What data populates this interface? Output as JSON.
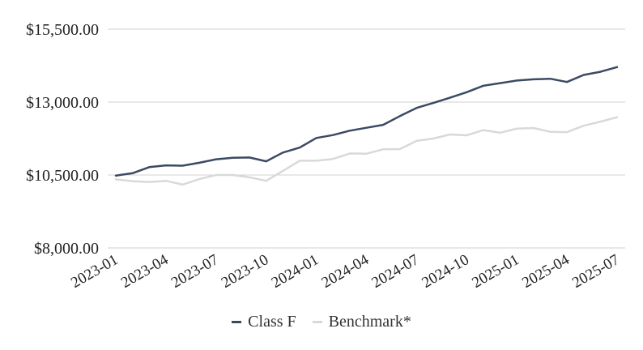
{
  "chart_data": {
    "type": "line",
    "title": "",
    "xlabel": "",
    "ylabel": "",
    "ylim": [
      8000,
      15500
    ],
    "yticks": [
      8000,
      10500,
      13000,
      15500
    ],
    "ytick_labels": [
      "$8,000.00",
      "$10,500.00",
      "$13,000.00",
      "$15,500.00"
    ],
    "x": [
      "2023-01",
      "2023-02",
      "2023-03",
      "2023-04",
      "2023-05",
      "2023-06",
      "2023-07",
      "2023-08",
      "2023-09",
      "2023-10",
      "2023-11",
      "2023-12",
      "2024-01",
      "2024-02",
      "2024-03",
      "2024-04",
      "2024-05",
      "2024-06",
      "2024-07",
      "2024-08",
      "2024-09",
      "2024-10",
      "2024-11",
      "2024-12",
      "2025-01",
      "2025-02",
      "2025-03",
      "2025-04",
      "2025-05",
      "2025-06",
      "2025-07"
    ],
    "xtick_labels": [
      "2023-01",
      "2023-04",
      "2023-07",
      "2023-10",
      "2024-01",
      "2024-04",
      "2024-07",
      "2024-10",
      "2025-01",
      "2025-04",
      "2025-07"
    ],
    "grid": true,
    "legend_position": "bottom",
    "series": [
      {
        "name": "Class F",
        "color": "#3b4a63",
        "values": [
          10480,
          10560,
          10770,
          10830,
          10820,
          10920,
          11040,
          11090,
          11100,
          10970,
          11270,
          11440,
          11770,
          11870,
          12020,
          12120,
          12220,
          12520,
          12800,
          12970,
          13150,
          13340,
          13560,
          13650,
          13740,
          13780,
          13800,
          13690,
          13930,
          14040,
          14200
        ]
      },
      {
        "name": "Benchmark*",
        "color": "#d9d9d9",
        "values": [
          10350,
          10290,
          10260,
          10300,
          10170,
          10360,
          10500,
          10500,
          10420,
          10300,
          10640,
          10990,
          10990,
          11050,
          11240,
          11230,
          11380,
          11390,
          11670,
          11750,
          11890,
          11860,
          12040,
          11950,
          12090,
          12110,
          11980,
          11970,
          12190,
          12330,
          12480
        ]
      }
    ]
  }
}
